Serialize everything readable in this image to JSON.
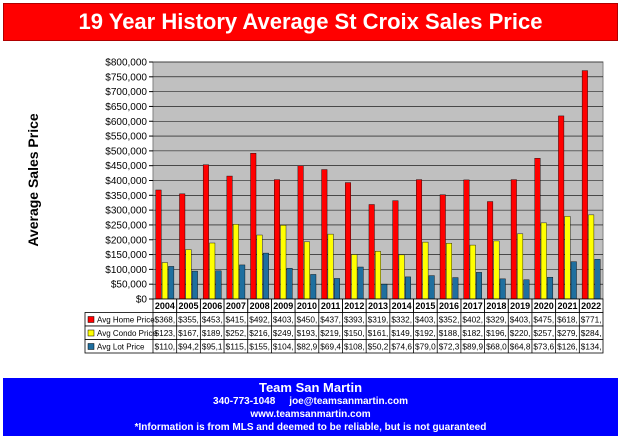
{
  "title": "19 Year History Average St Croix Sales Price",
  "footer": {
    "name": "Team San Martin",
    "phone": "340-773-1048",
    "email": "joe@teamsanmartin.com",
    "website": "www.teamsanmartin.com",
    "disclaimer": "*Information is from MLS and deemed to be reliable, but is not guaranteed"
  },
  "colors": {
    "home": "#ff0000",
    "condo": "#ffff00",
    "lot": "#1f6f9f",
    "plot_bg": "#c0c0c0",
    "header": "#ff0000",
    "footer": "#0000ff"
  },
  "chart_data": {
    "type": "bar",
    "title": "",
    "ylabel": "Average Sales Price",
    "xlabel": "",
    "ylim": [
      0,
      800000
    ],
    "y_ticks": [
      "$0",
      "$50,000",
      "$100,000",
      "$150,000",
      "$200,000",
      "$250,000",
      "$300,000",
      "$350,000",
      "$400,000",
      "$450,000",
      "$500,000",
      "$550,000",
      "$600,000",
      "$650,000",
      "$700,000",
      "$750,000",
      "$800,000"
    ],
    "grid": true,
    "legend": "data-table",
    "categories": [
      "2004",
      "2005",
      "2006",
      "2007",
      "2008",
      "2009",
      "2010",
      "2011",
      "2012",
      "2013",
      "2014",
      "2015",
      "2016",
      "2017",
      "2018",
      "2019",
      "2020",
      "2021",
      "2022"
    ],
    "series": [
      {
        "name": "Avg Home Price",
        "values": [
          368000,
          355000,
          453000,
          415000,
          492000,
          403000,
          450000,
          437000,
          393000,
          319000,
          332000,
          403000,
          352000,
          402000,
          329000,
          403000,
          475000,
          618000,
          771000
        ],
        "labels": [
          "$368,",
          "$355,",
          "$453,",
          "$415,",
          "$492,",
          "$403,",
          "$450,",
          "$437,",
          "$393,",
          "$319,",
          "$332,",
          "$403,",
          "$352,",
          "$402,",
          "$329,",
          "$403,",
          "$475,",
          "$618,",
          "$771,"
        ]
      },
      {
        "name": "Avg Condo Price",
        "values": [
          123000,
          167000,
          189000,
          252000,
          216000,
          249000,
          193000,
          219000,
          150000,
          161000,
          149000,
          192000,
          188000,
          182000,
          196000,
          220000,
          257000,
          279000,
          284000
        ],
        "labels": [
          "$123,",
          "$167,",
          "$189,",
          "$252,",
          "$216,",
          "$249,",
          "$193,",
          "$219,",
          "$150,",
          "$161,",
          "$149,",
          "$192,",
          "$188,",
          "$182,",
          "$196,",
          "$220,",
          "$257,",
          "$279,",
          "$284,"
        ]
      },
      {
        "name": "Avg Lot Price",
        "values": [
          110000,
          94200,
          95100,
          115000,
          155000,
          104000,
          82900,
          69400,
          108000,
          50200,
          74600,
          79000,
          72300,
          89900,
          68000,
          64800,
          73600,
          126000,
          134000
        ],
        "labels": [
          "$110,",
          "$94,2",
          "$95,1",
          "$115,",
          "$155,",
          "$104,",
          "$82,9",
          "$69,4",
          "$108,",
          "$50,2",
          "$74,6",
          "$79,0",
          "$72,3",
          "$89,9",
          "$68,0",
          "$64,8",
          "$73,6",
          "$126,",
          "$134,"
        ]
      }
    ]
  }
}
